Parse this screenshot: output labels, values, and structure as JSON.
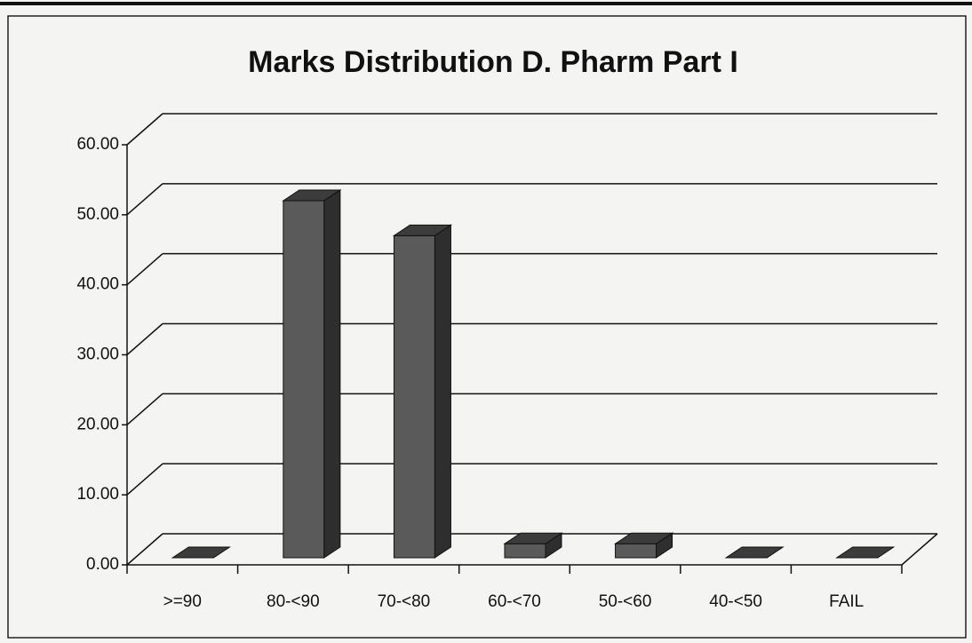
{
  "chart_data": {
    "type": "bar3d",
    "title": "Marks Distribution D. Pharm Part I",
    "categories": [
      ">=90",
      "80-<90",
      "70-<80",
      "60-<70",
      "50-<60",
      "40-<50",
      "FAIL"
    ],
    "values": [
      0,
      51,
      46,
      2,
      2,
      0,
      0
    ],
    "color": "#5a5a5a",
    "ylim": [
      0,
      60
    ],
    "yticks": [
      {
        "value": 0,
        "label": "0.00"
      },
      {
        "value": 10,
        "label": "10.00"
      },
      {
        "value": 20,
        "label": "20.00"
      },
      {
        "value": 30,
        "label": "30.00"
      },
      {
        "value": 40,
        "label": "40.00"
      },
      {
        "value": 50,
        "label": "50.00"
      },
      {
        "value": 60,
        "label": "60.00"
      }
    ],
    "grid": true
  }
}
